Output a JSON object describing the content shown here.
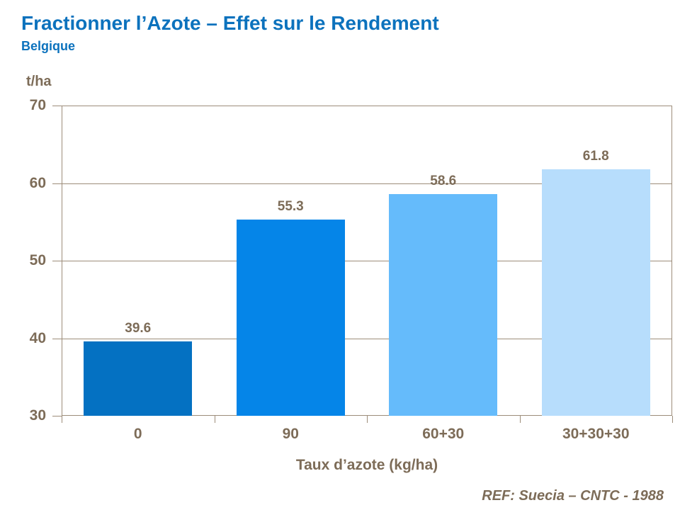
{
  "header": {
    "title": "Fractionner l’Azote – Effet sur le Rendement",
    "subtitle": "Belgique"
  },
  "chart_data": {
    "type": "bar",
    "title": "Fractionner l’Azote – Effet sur le Rendement",
    "subtitle": "Belgique",
    "categories": [
      "0",
      "90",
      "60+30",
      "30+30+30"
    ],
    "values": [
      39.6,
      55.3,
      58.6,
      61.8
    ],
    "value_labels": [
      "39.6",
      "55.3",
      "58.6",
      "61.8"
    ],
    "xlabel": "Taux d’azote (kg/ha)",
    "ylabel": "t/ha",
    "ylim": [
      30,
      70
    ],
    "yticks": [
      30,
      40,
      50,
      60,
      70
    ],
    "grid": true,
    "legend": false,
    "bar_colors": [
      "#0471C2",
      "#0585E8",
      "#65BBFB",
      "#B7DDFC"
    ]
  },
  "footer": {
    "ref": "REF: Suecia – CNTC - 1988"
  },
  "colors": {
    "title_blue": "#0C72BD",
    "axis_text_brown": "#7D6C58",
    "line_brown": "#9D8D7A"
  }
}
